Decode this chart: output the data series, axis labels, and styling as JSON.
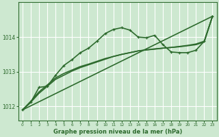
{
  "title": "Graphe pression niveau de la mer (hPa)",
  "background_color": "#cde8d0",
  "plot_bg_color": "#cde8d0",
  "grid_color": "#ffffff",
  "line_color": "#2d6a2d",
  "ylim": [
    1011.6,
    1015.0
  ],
  "xlim": [
    -0.5,
    23.5
  ],
  "yticks": [
    1012,
    1013,
    1014
  ],
  "xticks": [
    0,
    1,
    2,
    3,
    4,
    5,
    6,
    7,
    8,
    9,
    10,
    11,
    12,
    13,
    14,
    15,
    16,
    17,
    18,
    19,
    20,
    21,
    22,
    23
  ],
  "series": [
    {
      "x": [
        0,
        23
      ],
      "y": [
        1011.9,
        1014.6
      ],
      "has_marker": false,
      "linewidth": 1.2
    },
    {
      "x": [
        0,
        1,
        2,
        3,
        4,
        5,
        6,
        7,
        8,
        9,
        10,
        11,
        12,
        13,
        14,
        15,
        16,
        17,
        18,
        19,
        20,
        21,
        22,
        23
      ],
      "y": [
        1011.9,
        1012.15,
        1012.42,
        1012.62,
        1012.82,
        1012.95,
        1013.05,
        1013.15,
        1013.22,
        1013.3,
        1013.38,
        1013.44,
        1013.5,
        1013.55,
        1013.6,
        1013.63,
        1013.65,
        1013.68,
        1013.7,
        1013.73,
        1013.76,
        1013.8,
        1013.88,
        1014.6
      ],
      "has_marker": false,
      "linewidth": 1.2
    },
    {
      "x": [
        0,
        1,
        2,
        3,
        4,
        5,
        6,
        7,
        8,
        9,
        10,
        11,
        12,
        13,
        14,
        15,
        16,
        17,
        18,
        19,
        20,
        21,
        22,
        23
      ],
      "y": [
        1011.9,
        1012.12,
        1012.38,
        1012.58,
        1012.78,
        1012.9,
        1013.02,
        1013.12,
        1013.2,
        1013.28,
        1013.36,
        1013.44,
        1013.5,
        1013.55,
        1013.6,
        1013.63,
        1013.66,
        1013.68,
        1013.7,
        1013.72,
        1013.75,
        1013.78,
        1013.86,
        1014.6
      ],
      "has_marker": false,
      "linewidth": 1.2
    },
    {
      "x": [
        0,
        1,
        2,
        3,
        4,
        5,
        6,
        7,
        8,
        9,
        10,
        11,
        12,
        13,
        14,
        15,
        16,
        17,
        18,
        19,
        20,
        21,
        22,
        23
      ],
      "y": [
        1011.9,
        1012.12,
        1012.55,
        1012.58,
        1012.9,
        1013.18,
        1013.35,
        1013.55,
        1013.68,
        1013.88,
        1014.1,
        1014.22,
        1014.27,
        1014.2,
        1014.0,
        1013.98,
        1014.05,
        1013.78,
        1013.57,
        1013.55,
        1013.55,
        1013.62,
        1013.88,
        1014.6
      ],
      "has_marker": true,
      "linewidth": 1.2
    }
  ]
}
